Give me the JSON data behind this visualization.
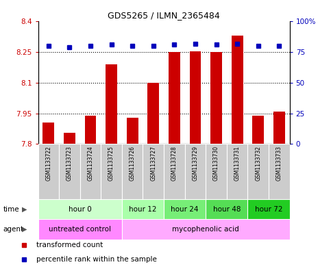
{
  "title": "GDS5265 / ILMN_2365484",
  "samples": [
    "GSM1133722",
    "GSM1133723",
    "GSM1133724",
    "GSM1133725",
    "GSM1133726",
    "GSM1133727",
    "GSM1133728",
    "GSM1133729",
    "GSM1133730",
    "GSM1133731",
    "GSM1133732",
    "GSM1133733"
  ],
  "bar_values": [
    7.905,
    7.855,
    7.94,
    8.19,
    7.93,
    8.1,
    8.25,
    8.255,
    8.25,
    8.33,
    7.94,
    7.96
  ],
  "dot_values": [
    80,
    79,
    80,
    81,
    80,
    80,
    81,
    82,
    81,
    82,
    80,
    80
  ],
  "ymin": 7.8,
  "ymax": 8.4,
  "y_ticks": [
    7.8,
    7.95,
    8.1,
    8.25,
    8.4
  ],
  "y_right_ticks": [
    0,
    25,
    50,
    75,
    100
  ],
  "dotted_lines": [
    7.95,
    8.1,
    8.25
  ],
  "bar_color": "#cc0000",
  "dot_color": "#0000bb",
  "time_groups": [
    {
      "label": "hour 0",
      "start": 0,
      "end": 3,
      "color": "#ccffcc"
    },
    {
      "label": "hour 12",
      "start": 4,
      "end": 5,
      "color": "#aaffaa"
    },
    {
      "label": "hour 24",
      "start": 6,
      "end": 7,
      "color": "#77ee77"
    },
    {
      "label": "hour 48",
      "start": 8,
      "end": 9,
      "color": "#55dd55"
    },
    {
      "label": "hour 72",
      "start": 10,
      "end": 11,
      "color": "#22cc22"
    }
  ],
  "agent_groups": [
    {
      "label": "untreated control",
      "start": 0,
      "end": 3,
      "color": "#ff88ff"
    },
    {
      "label": "mycophenolic acid",
      "start": 4,
      "end": 11,
      "color": "#ffaaff"
    }
  ],
  "sample_bg_color": "#cccccc",
  "legend_items": [
    {
      "label": "transformed count",
      "color": "#cc0000",
      "marker": "s"
    },
    {
      "label": "percentile rank within the sample",
      "color": "#0000bb",
      "marker": "s"
    }
  ]
}
